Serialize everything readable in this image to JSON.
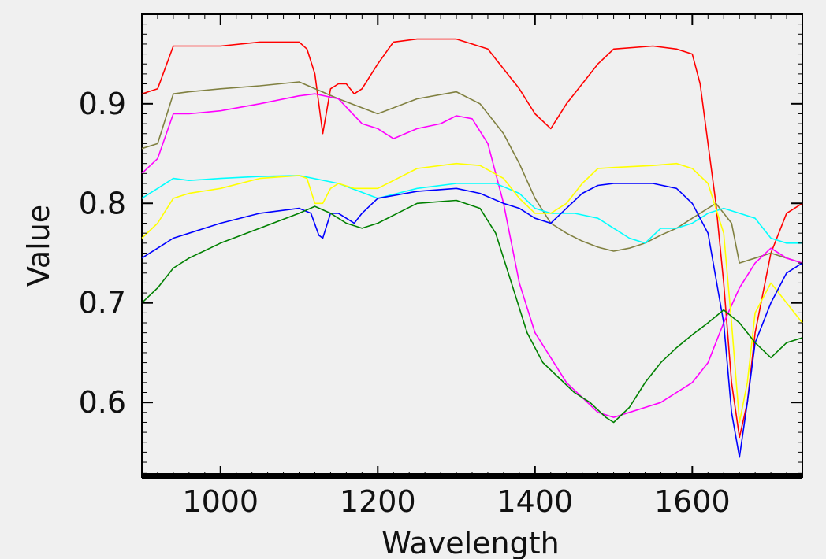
{
  "chart_data": {
    "type": "line",
    "title": "",
    "xlabel": "Wavelength",
    "ylabel": "Value",
    "xlim": [
      900,
      1740
    ],
    "ylim": [
      0.525,
      0.99
    ],
    "xticks": [
      1000,
      1200,
      1400,
      1600
    ],
    "xtick_labels": [
      "1000",
      "1200",
      "1400",
      "1600"
    ],
    "yticks": [
      0.6,
      0.7,
      0.8,
      0.9
    ],
    "ytick_labels": [
      "0.6",
      "0.7",
      "0.8",
      "0.9"
    ],
    "grid": false,
    "legend": "none",
    "series": [
      {
        "color": "#ff0000",
        "x": [
          900,
          920,
          940,
          960,
          1000,
          1050,
          1100,
          1110,
          1120,
          1130,
          1140,
          1150,
          1160,
          1170,
          1180,
          1200,
          1220,
          1250,
          1300,
          1320,
          1340,
          1360,
          1380,
          1400,
          1420,
          1440,
          1460,
          1480,
          1500,
          1550,
          1580,
          1600,
          1610,
          1620,
          1630,
          1640,
          1650,
          1660,
          1670,
          1680,
          1700,
          1720,
          1740
        ],
        "y": [
          0.91,
          0.915,
          0.958,
          0.958,
          0.958,
          0.962,
          0.962,
          0.955,
          0.93,
          0.87,
          0.915,
          0.92,
          0.92,
          0.91,
          0.915,
          0.94,
          0.962,
          0.965,
          0.965,
          0.96,
          0.955,
          0.935,
          0.915,
          0.89,
          0.875,
          0.9,
          0.92,
          0.94,
          0.955,
          0.958,
          0.955,
          0.95,
          0.92,
          0.86,
          0.8,
          0.72,
          0.62,
          0.565,
          0.6,
          0.67,
          0.75,
          0.79,
          0.8
        ]
      },
      {
        "color": "#808040",
        "x": [
          900,
          920,
          940,
          960,
          1000,
          1050,
          1100,
          1150,
          1200,
          1250,
          1300,
          1330,
          1360,
          1380,
          1400,
          1420,
          1440,
          1460,
          1480,
          1500,
          1520,
          1540,
          1560,
          1580,
          1600,
          1630,
          1650,
          1660,
          1680,
          1700,
          1720,
          1740
        ],
        "y": [
          0.855,
          0.86,
          0.91,
          0.912,
          0.915,
          0.918,
          0.922,
          0.905,
          0.89,
          0.905,
          0.912,
          0.9,
          0.87,
          0.84,
          0.805,
          0.78,
          0.77,
          0.762,
          0.756,
          0.752,
          0.755,
          0.76,
          0.768,
          0.775,
          0.785,
          0.8,
          0.78,
          0.74,
          0.745,
          0.75,
          0.745,
          0.74
        ]
      },
      {
        "color": "#ff00ff",
        "x": [
          900,
          920,
          940,
          960,
          1000,
          1050,
          1100,
          1120,
          1150,
          1180,
          1200,
          1220,
          1250,
          1280,
          1300,
          1320,
          1340,
          1360,
          1380,
          1400,
          1420,
          1440,
          1460,
          1480,
          1500,
          1520,
          1540,
          1560,
          1580,
          1600,
          1620,
          1640,
          1660,
          1680,
          1700,
          1720,
          1740
        ],
        "y": [
          0.83,
          0.845,
          0.89,
          0.89,
          0.893,
          0.9,
          0.908,
          0.91,
          0.905,
          0.88,
          0.875,
          0.865,
          0.875,
          0.88,
          0.888,
          0.885,
          0.86,
          0.8,
          0.72,
          0.67,
          0.645,
          0.62,
          0.605,
          0.59,
          0.585,
          0.59,
          0.595,
          0.6,
          0.61,
          0.62,
          0.64,
          0.68,
          0.715,
          0.74,
          0.755,
          0.745,
          0.74
        ]
      },
      {
        "color": "#00ffff",
        "x": [
          900,
          920,
          940,
          960,
          1000,
          1050,
          1100,
          1150,
          1200,
          1250,
          1300,
          1350,
          1380,
          1400,
          1420,
          1450,
          1480,
          1500,
          1520,
          1540,
          1560,
          1580,
          1600,
          1620,
          1640,
          1660,
          1680,
          1700,
          1720,
          1740
        ],
        "y": [
          0.805,
          0.815,
          0.825,
          0.823,
          0.825,
          0.827,
          0.828,
          0.82,
          0.805,
          0.815,
          0.82,
          0.82,
          0.81,
          0.795,
          0.79,
          0.79,
          0.785,
          0.775,
          0.765,
          0.76,
          0.775,
          0.775,
          0.78,
          0.79,
          0.795,
          0.79,
          0.785,
          0.765,
          0.76,
          0.76
        ]
      },
      {
        "color": "#ffff00",
        "x": [
          900,
          920,
          940,
          960,
          1000,
          1050,
          1100,
          1110,
          1120,
          1130,
          1140,
          1150,
          1170,
          1200,
          1250,
          1300,
          1330,
          1360,
          1380,
          1400,
          1420,
          1440,
          1460,
          1480,
          1500,
          1550,
          1580,
          1600,
          1620,
          1640,
          1650,
          1660,
          1670,
          1680,
          1700,
          1720,
          1740
        ],
        "y": [
          0.765,
          0.78,
          0.805,
          0.81,
          0.815,
          0.825,
          0.828,
          0.825,
          0.8,
          0.8,
          0.815,
          0.82,
          0.815,
          0.815,
          0.835,
          0.84,
          0.838,
          0.825,
          0.805,
          0.79,
          0.79,
          0.8,
          0.82,
          0.835,
          0.836,
          0.838,
          0.84,
          0.835,
          0.82,
          0.77,
          0.68,
          0.58,
          0.62,
          0.69,
          0.72,
          0.7,
          0.68
        ]
      },
      {
        "color": "#0000ff",
        "x": [
          900,
          920,
          940,
          960,
          1000,
          1050,
          1100,
          1115,
          1125,
          1130,
          1140,
          1150,
          1160,
          1170,
          1180,
          1200,
          1250,
          1300,
          1330,
          1360,
          1380,
          1400,
          1420,
          1440,
          1460,
          1480,
          1500,
          1550,
          1580,
          1600,
          1620,
          1640,
          1650,
          1660,
          1670,
          1680,
          1700,
          1720,
          1740
        ],
        "y": [
          0.745,
          0.755,
          0.765,
          0.77,
          0.78,
          0.79,
          0.795,
          0.79,
          0.768,
          0.765,
          0.79,
          0.79,
          0.785,
          0.78,
          0.79,
          0.805,
          0.812,
          0.815,
          0.81,
          0.8,
          0.795,
          0.785,
          0.78,
          0.795,
          0.81,
          0.818,
          0.82,
          0.82,
          0.815,
          0.8,
          0.77,
          0.68,
          0.59,
          0.545,
          0.6,
          0.66,
          0.7,
          0.73,
          0.74
        ]
      },
      {
        "color": "#008000",
        "x": [
          900,
          920,
          940,
          960,
          1000,
          1050,
          1100,
          1120,
          1140,
          1160,
          1180,
          1200,
          1250,
          1300,
          1330,
          1350,
          1370,
          1390,
          1410,
          1430,
          1450,
          1470,
          1490,
          1500,
          1520,
          1540,
          1560,
          1580,
          1600,
          1620,
          1640,
          1660,
          1680,
          1700,
          1720,
          1740
        ],
        "y": [
          0.7,
          0.715,
          0.735,
          0.745,
          0.76,
          0.775,
          0.79,
          0.797,
          0.79,
          0.78,
          0.775,
          0.78,
          0.8,
          0.803,
          0.795,
          0.77,
          0.72,
          0.67,
          0.64,
          0.625,
          0.61,
          0.6,
          0.585,
          0.58,
          0.595,
          0.62,
          0.64,
          0.655,
          0.668,
          0.68,
          0.693,
          0.68,
          0.66,
          0.645,
          0.66,
          0.665
        ]
      }
    ]
  }
}
